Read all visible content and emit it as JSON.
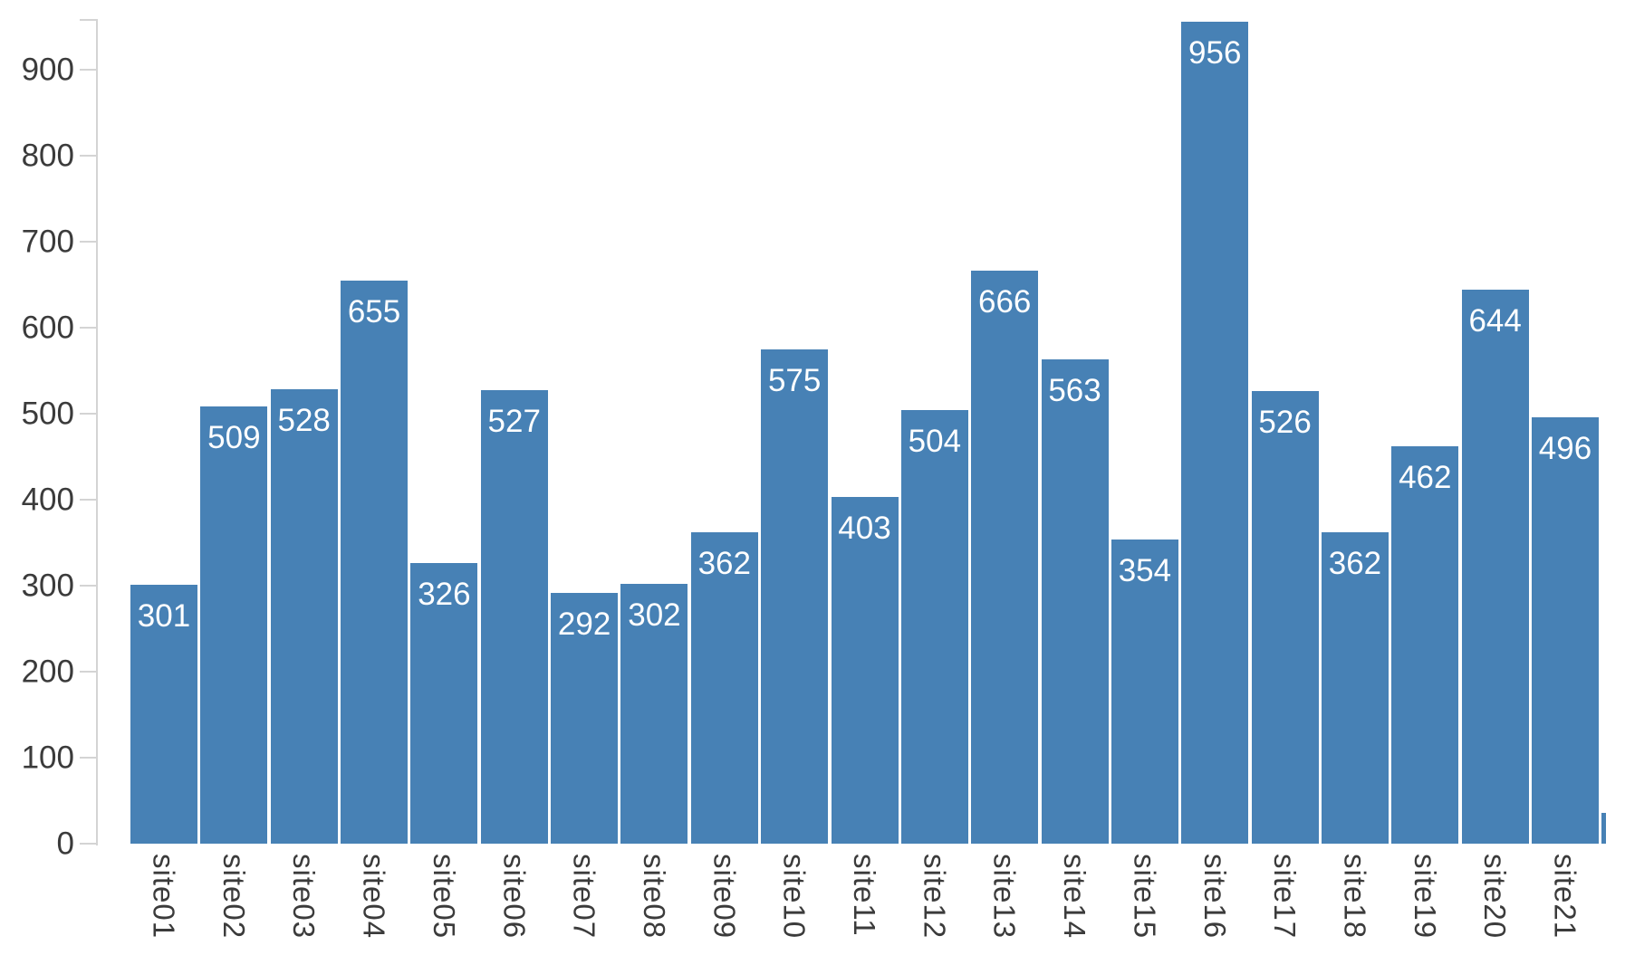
{
  "chart_data": {
    "type": "bar",
    "title": "",
    "xlabel": "",
    "ylabel": "",
    "categories": [
      "site01",
      "site02",
      "site03",
      "site04",
      "site05",
      "site06",
      "site07",
      "site08",
      "site09",
      "site10",
      "site11",
      "site12",
      "site13",
      "site14",
      "site15",
      "site16",
      "site17",
      "site18",
      "site19",
      "site20",
      "site21"
    ],
    "values": [
      301,
      509,
      528,
      655,
      326,
      527,
      292,
      302,
      362,
      575,
      403,
      504,
      666,
      563,
      354,
      956,
      526,
      362,
      462,
      644,
      496
    ],
    "value_labels_shown": true,
    "ylim": [
      0,
      958
    ],
    "y_ticks": [
      0,
      100,
      200,
      300,
      400,
      500,
      600,
      700,
      800,
      900
    ],
    "x_tick_label_rotation_deg": 90,
    "grid": false,
    "legend_visible": false,
    "background_color": "#ffffff",
    "bar_color": "#4781b5",
    "bar_value_label_color": "#ffffff",
    "axis_line_color": "#d4d4d4",
    "axis_tick_color": "#d4d4d4",
    "axis_label_color": "#3b3b3b",
    "clipped_partial_bar_right": {
      "approx_value": 36,
      "label_visible": false
    }
  }
}
